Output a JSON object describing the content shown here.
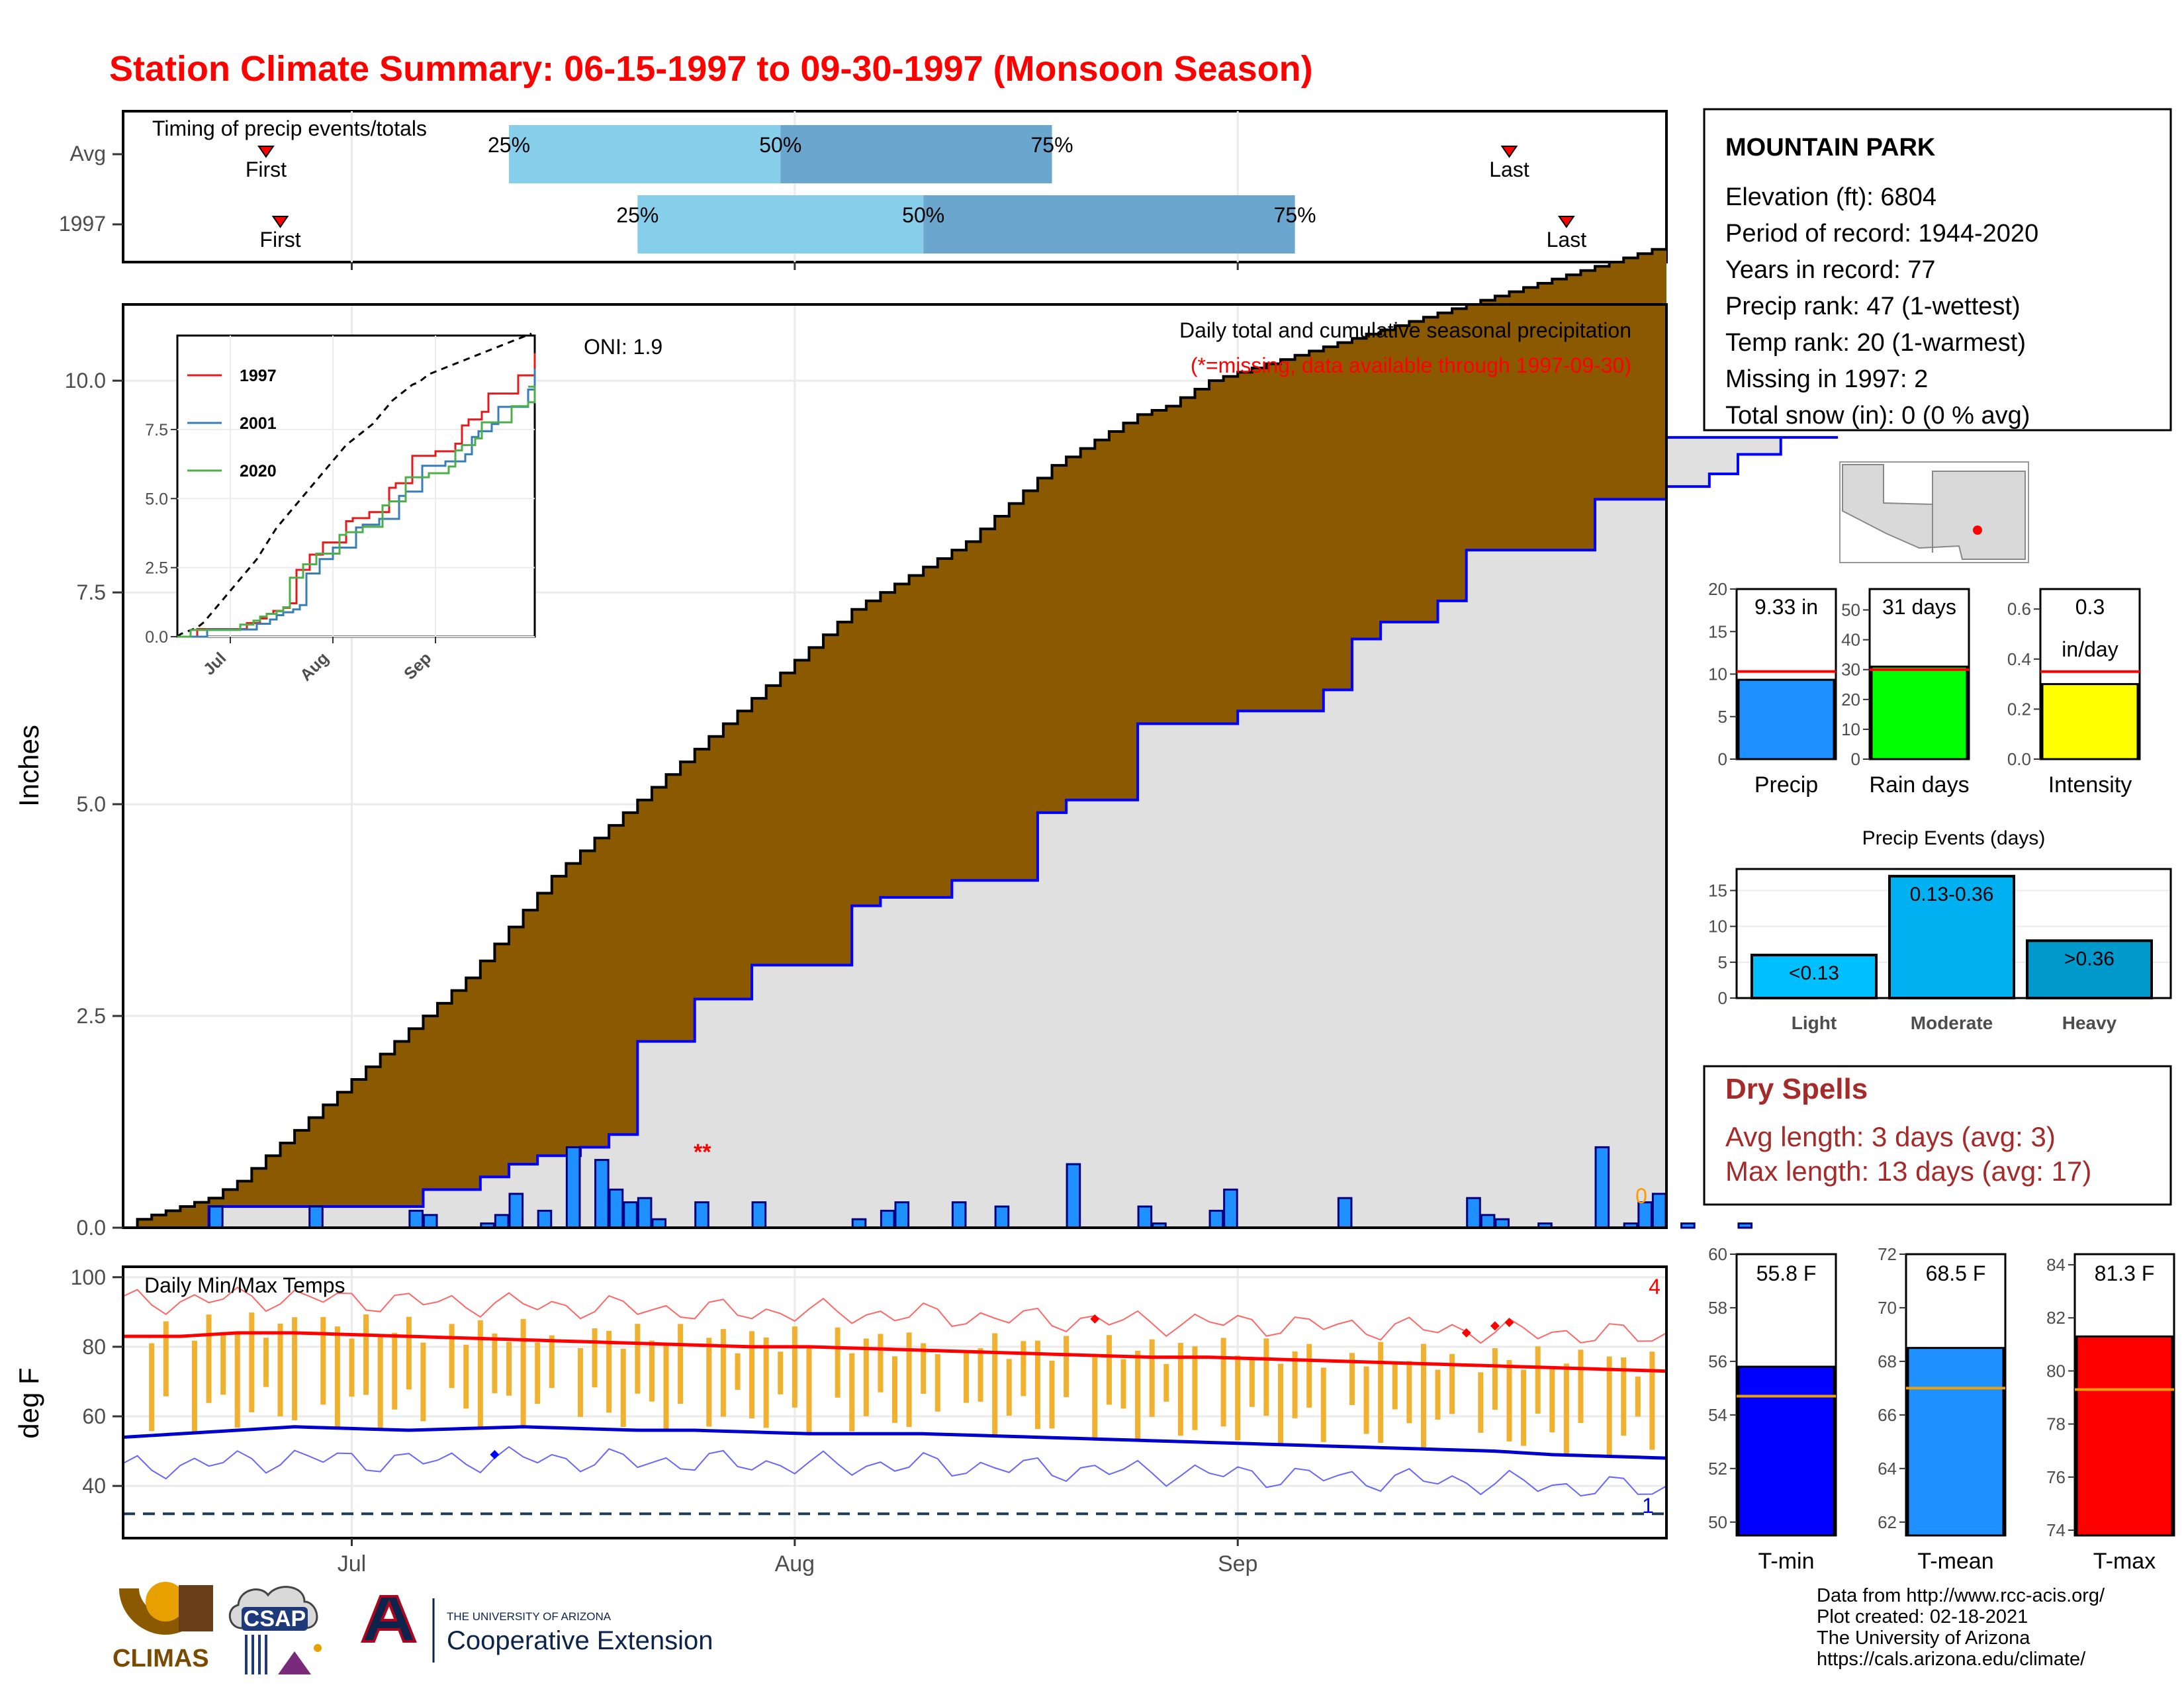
{
  "title": "Station Climate Summary: 06-15-1997 to 09-30-1997 (Monsoon Season)",
  "timing": {
    "label": "Timing of precip events/totals",
    "rows": [
      {
        "name": "Avg",
        "p25": "2017-07-12",
        "p50": "2017-07-31",
        "p75": "2017-08-19",
        "first": "2017-06-25",
        "last": "2017-09-20",
        "label_25": "25%",
        "label_50": "50%",
        "label_75": "75%",
        "label_first": "First",
        "label_last": "Last"
      },
      {
        "name": "1997",
        "p25": "2017-07-21",
        "p50": "2017-08-10",
        "p75": "2017-09-05",
        "first": "2017-06-26",
        "last": "2017-09-24",
        "label_25": "25%",
        "label_50": "50%",
        "label_75": "75%",
        "label_first": "First",
        "label_last": "Last"
      }
    ]
  },
  "precip_panel": {
    "ylabel": "Inches",
    "yticks": [
      "0.0",
      "2.5",
      "5.0",
      "7.5",
      "10.0"
    ],
    "legend_title": "Daily total and cumulative seasonal precipitation",
    "legend_note": "(*=missing, data available through 1997-09-30)",
    "oni": "ONI: 1.9",
    "missing_marks": "**",
    "zero_label": "0"
  },
  "inset": {
    "yticks": [
      "0.0",
      "2.5",
      "5.0",
      "7.5"
    ],
    "xticks": [
      "Jul",
      "Aug",
      "Sep"
    ],
    "legend": [
      {
        "name": "1997",
        "color": "#e41a1c"
      },
      {
        "name": "2001",
        "color": "#377eb8"
      },
      {
        "name": "2020",
        "color": "#4daf4a"
      }
    ]
  },
  "temp_panel": {
    "label": "Daily Min/Max Temps",
    "ylabel": "deg F",
    "yticks": [
      "40",
      "60",
      "80",
      "100"
    ],
    "count_top": "4",
    "count_bottom": "1"
  },
  "xaxis_ticks": [
    "Jul",
    "Aug",
    "Sep"
  ],
  "station": {
    "name": "MOUNTAIN PARK",
    "lines": [
      "Elevation (ft): 6804",
      "Period of record: 1944-2020",
      "Years in record: 77",
      "Precip rank: 47 (1-wettest)",
      "Temp rank: 20 (1-warmest)",
      "Missing in 1997: 2",
      "Total snow (in): 0 (0 % avg)"
    ]
  },
  "minibars": [
    {
      "name": "Precip",
      "value": 9.33,
      "avg": 10.3,
      "label1": "9.33 in",
      "label2": "",
      "color": "#1e90ff",
      "ymax": 20,
      "ticks": [
        "0",
        "5",
        "10",
        "15",
        "20"
      ],
      "tickvals": [
        0,
        5,
        10,
        15,
        20
      ]
    },
    {
      "name": "Rain days",
      "value": 31,
      "avg": 30,
      "label1": "31 days",
      "label2": "",
      "color": "#00ff00",
      "ymax": 57,
      "ticks": [
        "0",
        "10",
        "20",
        "30",
        "40",
        "50"
      ],
      "tickvals": [
        0,
        10,
        20,
        30,
        40,
        50
      ]
    },
    {
      "name": "Intensity",
      "value": 0.3,
      "avg": 0.35,
      "label1": "0.3",
      "label2": "in/day",
      "color": "#ffff00",
      "ymax": 0.68,
      "ticks": [
        "0.0",
        "0.2",
        "0.4",
        "0.6"
      ],
      "tickvals": [
        0,
        0.2,
        0.4,
        0.6
      ]
    }
  ],
  "events": {
    "title": "Precip Events (days)",
    "ticks": [
      "0",
      "5",
      "10",
      "15"
    ],
    "bars": [
      {
        "cat": "Light",
        "label": "<0.13",
        "value": 6,
        "color": "#00bfff"
      },
      {
        "cat": "Moderate",
        "label": "0.13-0.36",
        "value": 17,
        "color": "#00b0f0"
      },
      {
        "cat": "Heavy",
        "label": ">0.36",
        "value": 8,
        "color": "#0099cc"
      }
    ]
  },
  "dry": {
    "title": "Dry Spells",
    "avg_line": "Avg length: 3 days (avg: 3)",
    "max_line": "Max length: 13 days (avg: 17)"
  },
  "tempbars": [
    {
      "name": "T-min",
      "value": 55.8,
      "avg": 54.7,
      "label": "55.8 F",
      "color": "#0000ff",
      "ymin": 49.5,
      "ymax": 60,
      "ticks": [
        "50",
        "52",
        "54",
        "56",
        "58",
        "60"
      ],
      "tickvals": [
        50,
        52,
        54,
        56,
        58,
        60
      ]
    },
    {
      "name": "T-mean",
      "value": 68.5,
      "avg": 67,
      "label": "68.5 F",
      "color": "#1e90ff",
      "ymin": 61.5,
      "ymax": 72,
      "ticks": [
        "62",
        "64",
        "66",
        "68",
        "70",
        "72"
      ],
      "tickvals": [
        62,
        64,
        66,
        68,
        70,
        72
      ]
    },
    {
      "name": "T-max",
      "value": 81.3,
      "avg": 79.3,
      "label": "81.3 F",
      "color": "#ff0000",
      "ymin": 73.8,
      "ymax": 84.4,
      "ticks": [
        "74",
        "76",
        "78",
        "80",
        "82",
        "84"
      ],
      "tickvals": [
        74,
        76,
        78,
        80,
        82,
        84
      ]
    }
  ],
  "footer": [
    "Data from http://www.rcc-acis.org/",
    "Plot created: 02-18-2021",
    "The University of Arizona",
    "https://cals.arizona.edu/climate/"
  ],
  "logos": {
    "climas": "CLIMAS",
    "csap": "CSAP",
    "ua_small": "THE UNIVERSITY OF ARIZONA",
    "ua_big": "Cooperative Extension"
  },
  "chart_data": {
    "type": "area",
    "start": "1997-06-15",
    "end": "1997-09-30",
    "avg_cumulative": [
      0,
      0.1,
      0.15,
      0.2,
      0.25,
      0.3,
      0.35,
      0.45,
      0.55,
      0.7,
      0.85,
      1,
      1.15,
      1.3,
      1.45,
      1.6,
      1.75,
      1.9,
      2.05,
      2.2,
      2.35,
      2.5,
      2.65,
      2.8,
      2.95,
      3.15,
      3.35,
      3.55,
      3.75,
      3.95,
      4.15,
      4.3,
      4.45,
      4.6,
      4.75,
      4.9,
      5.05,
      5.2,
      5.35,
      5.5,
      5.65,
      5.8,
      5.95,
      6.1,
      6.25,
      6.4,
      6.55,
      6.7,
      6.85,
      7,
      7.15,
      7.3,
      7.4,
      7.5,
      7.6,
      7.7,
      7.8,
      7.9,
      8.0,
      8.1,
      8.25,
      8.4,
      8.55,
      8.7,
      8.85,
      9.0,
      9.1,
      9.2,
      9.3,
      9.4,
      9.5,
      9.6,
      9.65,
      9.7,
      9.8,
      9.9,
      10.0,
      10.05,
      10.1,
      10.15,
      10.2,
      10.25,
      10.3,
      10.35,
      10.4,
      10.45,
      10.5,
      10.55,
      10.6,
      10.65,
      10.7,
      10.75,
      10.8,
      10.85,
      10.9,
      10.95,
      11.0,
      11.05,
      11.1,
      11.15,
      11.2,
      11.25,
      11.3,
      11.35,
      11.4,
      11.45,
      11.5,
      11.55
    ],
    "obs_cumulative": {
      "x": [
        0,
        6,
        13,
        20,
        21,
        25,
        27,
        29,
        32,
        34,
        36,
        40,
        44,
        51,
        53,
        58,
        64,
        66,
        71,
        78,
        84,
        86,
        88,
        92,
        94,
        103,
        108,
        111,
        113,
        115,
        116,
        117,
        119,
        120
      ],
      "y": [
        0,
        0.25,
        0.25,
        0.25,
        0.45,
        0.6,
        0.75,
        0.85,
        0.95,
        1.1,
        2.2,
        2.7,
        3.1,
        3.8,
        3.9,
        4.1,
        4.9,
        5.05,
        5.95,
        6.1,
        6.35,
        6.95,
        7.15,
        7.4,
        8.0,
        8.6,
        8.75,
        8.9,
        9.13,
        9.13,
        9.33,
        9.33,
        9.33,
        9.33
      ]
    },
    "daily_precip": {
      "x": [
        6,
        13,
        20,
        21,
        25,
        26,
        27,
        29,
        31,
        33,
        34,
        35,
        36,
        37,
        40,
        44,
        51,
        53,
        54,
        58,
        61,
        66,
        71,
        72,
        76,
        77,
        85,
        94,
        95,
        96,
        99,
        103,
        105,
        106,
        107,
        109,
        113
      ],
      "y": [
        0.25,
        0.25,
        0.2,
        0.15,
        0.05,
        0.15,
        0.4,
        0.2,
        0.95,
        0.8,
        0.45,
        0.3,
        0.35,
        0.1,
        0.3,
        0.3,
        0.1,
        0.2,
        0.3,
        0.3,
        0.25,
        0.75,
        0.25,
        0.05,
        0.2,
        0.45,
        0.35,
        0.35,
        0.15,
        0.1,
        0.05,
        0.95,
        0.05,
        0.3,
        0.4,
        0.05,
        0.05
      ]
    },
    "tmax_avg": [
      83,
      83,
      84,
      84,
      83.5,
      83,
      82.5,
      82,
      81.5,
      81,
      80.5,
      80,
      80,
      79.5,
      79,
      78.5,
      78,
      77.5,
      77,
      77,
      76.5,
      76,
      75.5,
      75,
      74.5,
      74,
      73.5,
      73
    ],
    "tmin_avg": [
      54,
      55,
      56,
      57,
      56.5,
      56,
      56.5,
      57,
      56.5,
      56,
      56,
      55.5,
      55,
      55,
      55,
      54.5,
      54,
      53.5,
      53,
      52.5,
      52,
      51.5,
      51,
      50.5,
      50,
      49,
      48.5,
      48
    ],
    "freeze_line": 32,
    "temp_ylim": [
      25,
      103
    ],
    "precip_ylim": [
      0,
      10.9
    ]
  }
}
